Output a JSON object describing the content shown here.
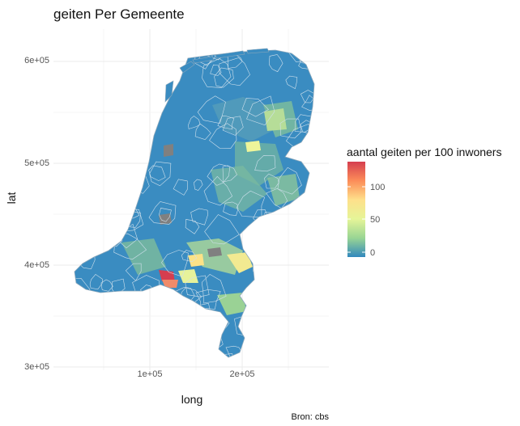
{
  "title": "geiten Per Gemeente",
  "x_axis": {
    "label": "long",
    "ticks": [
      "1e+05",
      "2e+05"
    ]
  },
  "y_axis": {
    "label": "lat",
    "ticks": [
      "6e+05",
      "5e+05",
      "4e+05",
      "3e+05"
    ]
  },
  "legend": {
    "title": "aantal geiten per 100 inwoners",
    "ticks": [
      "100",
      "50",
      "0"
    ],
    "colors": [
      "#d53e4f",
      "#fc8d59",
      "#fee08b",
      "#e6f598",
      "#99d594",
      "#3288bd"
    ]
  },
  "caption": "Bron: cbs",
  "map": {
    "base_color": "#3a8cc1",
    "border_color": "#cfe0ec",
    "missing_color": "#808080"
  }
}
